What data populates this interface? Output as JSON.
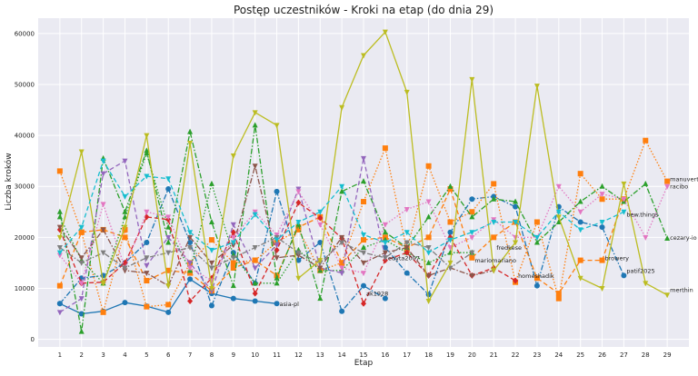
{
  "chart_data": {
    "type": "line",
    "title": "Postęp uczestników - Kroki na etap (do dnia 29)",
    "xlabel": "Etap",
    "ylabel": "Liczba kroków",
    "xlim": [
      0,
      30
    ],
    "ylim": [
      -1500,
      63000
    ],
    "x_ticks": [
      1,
      2,
      3,
      4,
      5,
      6,
      7,
      8,
      9,
      10,
      11,
      12,
      13,
      14,
      15,
      16,
      17,
      18,
      19,
      20,
      21,
      22,
      23,
      24,
      25,
      26,
      27,
      28,
      29
    ],
    "y_ticks": [
      0,
      10000,
      20000,
      30000,
      40000,
      50000,
      60000
    ],
    "grid": true,
    "series": [
      {
        "name": "asia-pl",
        "color": "#1f77b4",
        "marker": "circle",
        "dash": "solid",
        "x": [
          1,
          2,
          3,
          4,
          5,
          6,
          7,
          8,
          9,
          10,
          11
        ],
        "values": [
          7000,
          5000,
          5500,
          7200,
          6500,
          5300,
          11800,
          9000,
          8000,
          7500,
          7000
        ]
      },
      {
        "name": "ak1928",
        "color": "#1f77b4",
        "marker": "circle",
        "dash": "dashdot",
        "x": [
          1,
          2,
          3,
          4,
          5,
          6,
          7,
          8,
          9,
          10,
          11,
          12,
          13,
          14,
          15,
          16
        ],
        "values": [
          7000,
          12000,
          12500,
          15000,
          19000,
          29500,
          19000,
          6600,
          17000,
          11000,
          29000,
          15500,
          19000,
          5500,
          10500,
          8000
        ]
      },
      {
        "name": "patif2025",
        "color": "#1f77b4",
        "marker": "circle",
        "dash": "dashdot",
        "x": [
          16,
          17,
          18,
          19,
          20,
          21,
          22,
          23,
          24,
          25,
          26,
          27
        ],
        "values": [
          18000,
          13000,
          8800,
          21000,
          27500,
          28000,
          26000,
          10500,
          26000,
          23000,
          22000,
          12500
        ]
      },
      {
        "name": "manuvert",
        "color": "#ff7f0e",
        "marker": "square",
        "dash": "dotted",
        "x": [
          1,
          2,
          3,
          4,
          5,
          6,
          7,
          8,
          9,
          10,
          11,
          12,
          13,
          14,
          15,
          16,
          17,
          18,
          19,
          20,
          21,
          22,
          23,
          24,
          25,
          26,
          27,
          28,
          29
        ],
        "values": [
          33000,
          21000,
          5300,
          21500,
          6400,
          6800,
          15000,
          19500,
          15000,
          15500,
          19000,
          21500,
          13500,
          15000,
          27000,
          37500,
          17500,
          34000,
          23000,
          25000,
          30500,
          11200,
          23000,
          8000,
          32500,
          27500,
          27500,
          39000,
          31000
        ]
      },
      {
        "name": "browery",
        "color": "#ff7f0e",
        "marker": "square",
        "dash": "dashed",
        "x": [
          1,
          2,
          3,
          4,
          5,
          6,
          7,
          8,
          9,
          10,
          11,
          12,
          13,
          14,
          15,
          16,
          17,
          18,
          19,
          20,
          21,
          22,
          23,
          24,
          25,
          26,
          27
        ],
        "values": [
          10500,
          21000,
          21500,
          20000,
          11500,
          13500,
          13000,
          9500,
          14000,
          15500,
          12500,
          22000,
          24000,
          15000,
          19500,
          20000,
          18000,
          20000,
          29500,
          16000,
          20000,
          23000,
          12000,
          9000,
          15500,
          15500,
          27500
        ]
      },
      {
        "name": "racibo",
        "color": "#2ca02c",
        "marker": "triangle-up",
        "dash": "dashdot",
        "x": [
          1,
          2,
          3,
          4,
          5,
          6,
          7,
          8,
          9,
          10,
          11,
          12,
          13,
          14,
          15,
          16,
          17,
          18,
          19,
          20,
          21,
          22,
          23,
          24,
          25,
          26,
          27,
          28,
          29
        ],
        "values": [
          25000,
          1500,
          35500,
          25000,
          37000,
          19000,
          40700,
          23000,
          10500,
          42000,
          12000,
          22500,
          8000,
          29000,
          31000,
          21000,
          18000,
          24000,
          30000,
          24000,
          27500,
          27000,
          19000,
          23000,
          27000,
          30000,
          27000,
          30500,
          19800
        ]
      },
      {
        "name": "mariomariano",
        "color": "#2ca02c",
        "marker": "triangle-up",
        "dash": "dotted",
        "x": [
          1,
          2,
          3,
          4,
          5,
          6,
          7,
          8,
          9,
          10,
          11,
          12,
          13,
          14,
          15,
          16,
          17,
          18,
          19,
          20
        ],
        "values": [
          24000,
          15500,
          11000,
          24000,
          36500,
          22000,
          13500,
          30500,
          16500,
          11000,
          11000,
          17500,
          13500,
          13500,
          18000,
          19500,
          17000,
          15000,
          17000,
          17000
        ]
      },
      {
        "name": "homeshadik",
        "color": "#d62728",
        "marker": "diamond",
        "dash": "dashed",
        "x": [
          1,
          2,
          3,
          4,
          5,
          6,
          7,
          8,
          9,
          10,
          11,
          12,
          13,
          14,
          15,
          16,
          17,
          18,
          19,
          20,
          21,
          22
        ],
        "values": [
          21500,
          11000,
          11200,
          15000,
          24000,
          23500,
          7500,
          12000,
          21000,
          9000,
          17500,
          26800,
          23800,
          19800,
          7000,
          15500,
          17000,
          12500,
          20000,
          12500,
          14000,
          11500
        ]
      },
      {
        "name": "edyta2007",
        "color": "#9467bd",
        "marker": "triangle-down",
        "dash": "dashed",
        "x": [
          1,
          2,
          3,
          4,
          5,
          6,
          7,
          8,
          9,
          10,
          11,
          12,
          13,
          14,
          15,
          16
        ],
        "values": [
          5300,
          8000,
          32500,
          35000,
          14500,
          20000,
          15000,
          9500,
          22500,
          14000,
          18500,
          29500,
          14000,
          13000,
          35500,
          16000
        ]
      },
      {
        "name": "fredkese",
        "color": "#8c564b",
        "marker": "triangle-down",
        "dash": "dashdot",
        "x": [
          1,
          2,
          3,
          4,
          5,
          6,
          7,
          8,
          9,
          10,
          11,
          12,
          13,
          14,
          15,
          16,
          17,
          18,
          19,
          20,
          21
        ],
        "values": [
          22000,
          16000,
          21500,
          13500,
          13000,
          10500,
          20000,
          15000,
          18500,
          34000,
          16000,
          16500,
          14000,
          20000,
          15000,
          17000,
          18000,
          12500,
          14000,
          12500,
          13500
        ]
      },
      {
        "name": "bew.things",
        "color": "#e377c2",
        "marker": "triangle-down",
        "dash": "dotted",
        "x": [
          1,
          2,
          3,
          4,
          5,
          6,
          7,
          8,
          9,
          10,
          11,
          12,
          13,
          14,
          15,
          16,
          17,
          18,
          19,
          20,
          21,
          22,
          23,
          24,
          25,
          26,
          27,
          28,
          29
        ],
        "values": [
          16500,
          11000,
          26500,
          14000,
          25000,
          24000,
          14000,
          11500,
          20000,
          25000,
          20500,
          29000,
          22500,
          14000,
          13000,
          22500,
          25500,
          27000,
          18000,
          20000,
          23500,
          20000,
          20000,
          30000,
          25000,
          28500,
          27500,
          20000,
          30000
        ]
      },
      {
        "name": "cezary-io",
        "color": "#7f7f7f",
        "marker": "triangle-down",
        "dash": "dashdot",
        "x": [
          1,
          2,
          3,
          4,
          5,
          6,
          7,
          8,
          9,
          10,
          11,
          12,
          13,
          14,
          15,
          16,
          17,
          18,
          19,
          20
        ],
        "values": [
          18000,
          15000,
          17000,
          14000,
          16000,
          17000,
          18000,
          14000,
          16000,
          18000,
          20000,
          17000,
          15000,
          19000,
          17000,
          16000,
          19000,
          18000,
          14000,
          17000
        ]
      },
      {
        "name": "merthin",
        "color": "#bcbd22",
        "marker": "triangle-down",
        "dash": "solid",
        "x": [
          1,
          2,
          3,
          4,
          5,
          6,
          7,
          8,
          9,
          10,
          11,
          12,
          13,
          14,
          15,
          16,
          17,
          18,
          19,
          20,
          21,
          22,
          23,
          24,
          25,
          26,
          27,
          28,
          29
        ],
        "values": [
          20000,
          36800,
          11000,
          22000,
          40000,
          10500,
          38500,
          10000,
          36000,
          44500,
          42000,
          12000,
          15500,
          45500,
          55700,
          60300,
          48500,
          7500,
          15000,
          51000,
          13500,
          19000,
          49700,
          24000,
          12000,
          10000,
          30500,
          11000,
          8700
        ]
      },
      {
        "name": "",
        "color": "#17becf",
        "marker": "triangle-down",
        "dash": "dashed",
        "x": [
          1,
          2,
          3,
          4,
          5,
          6,
          7,
          8,
          9,
          10,
          11,
          12,
          13,
          14,
          15,
          16,
          17,
          18,
          19,
          20,
          21,
          22,
          23,
          24,
          25,
          26,
          27
        ],
        "values": [
          17000,
          22000,
          35000,
          28000,
          32000,
          31500,
          21000,
          17500,
          19000,
          24500,
          19500,
          23000,
          25000,
          30000,
          20500,
          19000,
          21000,
          17000,
          19500,
          21000,
          23000,
          23000,
          20000,
          25000,
          21500,
          23000,
          25000
        ]
      }
    ],
    "end_labels": [
      {
        "text": "asia-pl",
        "x": 11,
        "y": 7000
      },
      {
        "text": "ak1928",
        "x": 15,
        "y": 9000
      },
      {
        "text": "edyta2007",
        "x": 16,
        "y": 16000
      },
      {
        "text": "fredkese",
        "x": 21,
        "y": 18000
      },
      {
        "text": "mariomariano",
        "x": 20,
        "y": 15500
      },
      {
        "text": "homeshadik",
        "x": 22,
        "y": 12500
      },
      {
        "text": "patif2025",
        "x": 27,
        "y": 13500
      },
      {
        "text": "browery",
        "x": 26,
        "y": 16000
      },
      {
        "text": "bew.things",
        "x": 27,
        "y": 24500
      },
      {
        "text": "manuvert",
        "x": 29,
        "y": 31500
      },
      {
        "text": "racibo",
        "x": 29,
        "y": 30000
      },
      {
        "text": "cezary-io",
        "x": 29,
        "y": 20000
      },
      {
        "text": "merthin",
        "x": 29,
        "y": 9700
      }
    ]
  }
}
